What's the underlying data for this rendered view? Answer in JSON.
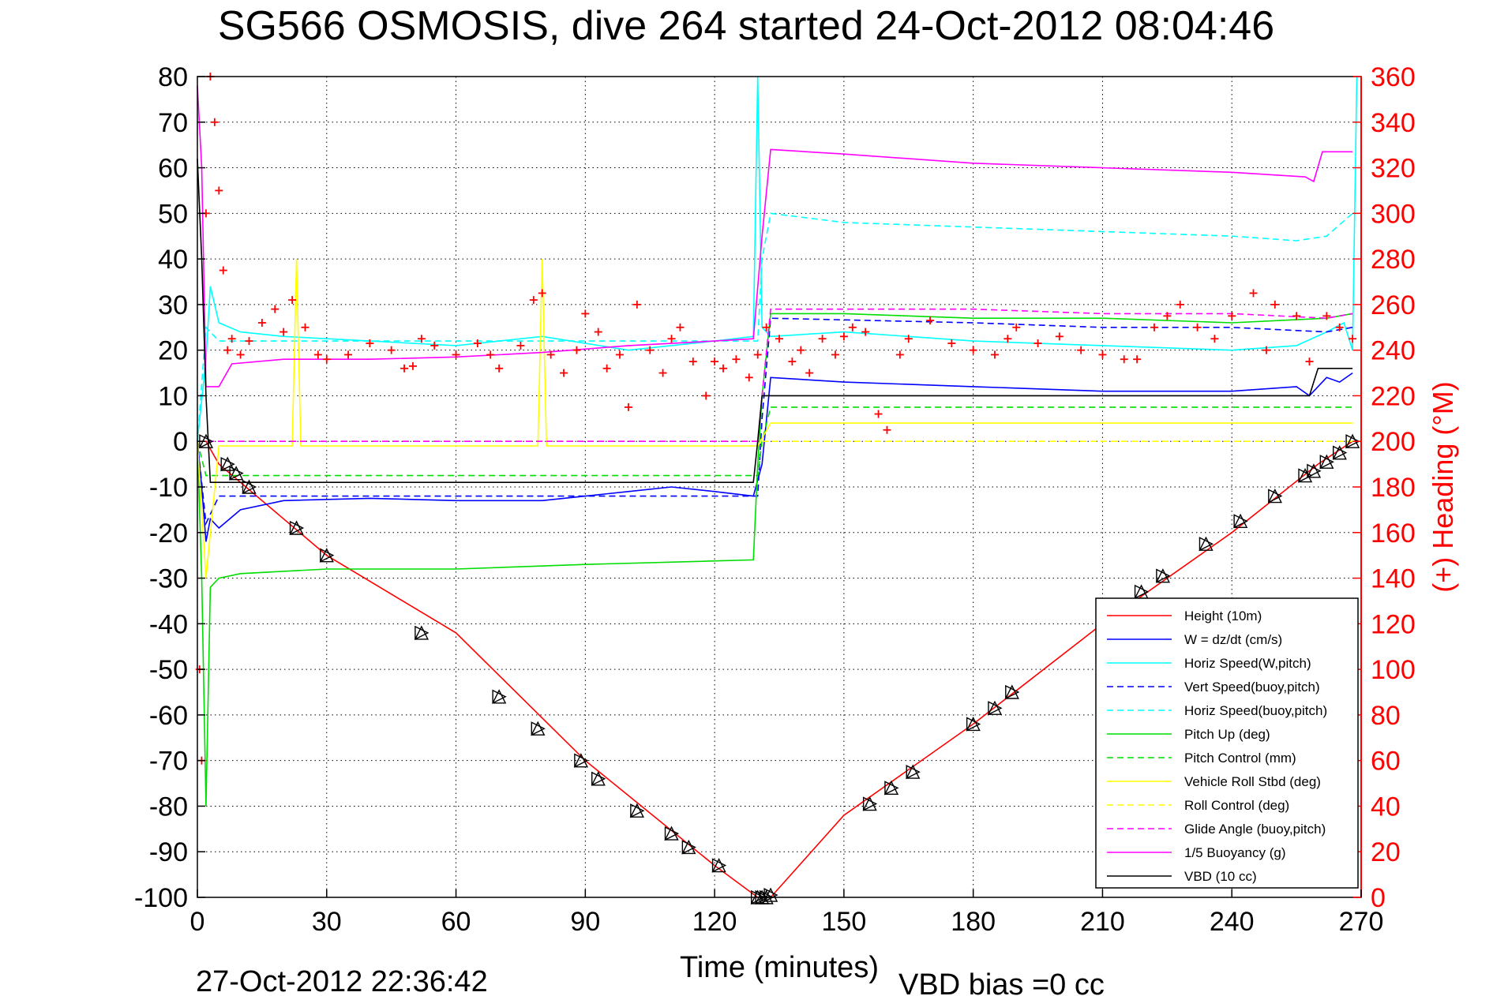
{
  "chart_data": {
    "type": "line",
    "title": "SG566 OSMOSIS, dive 264 started 24-Oct-2012 08:04:46",
    "xlabel": "Time (minutes)",
    "ylabel_left": "",
    "ylabel_right": "(+) Heading (°M)",
    "xlim": [
      0,
      270
    ],
    "ylim_left": [
      -100,
      80
    ],
    "ylim_right": [
      0,
      360
    ],
    "xticks": [
      0,
      30,
      60,
      90,
      120,
      150,
      180,
      210,
      240,
      270
    ],
    "yticks_left": [
      -100,
      -90,
      -80,
      -70,
      -60,
      -50,
      -40,
      -30,
      -20,
      -10,
      0,
      10,
      20,
      30,
      40,
      50,
      60,
      70,
      80
    ],
    "yticks_right": [
      0,
      20,
      40,
      60,
      80,
      100,
      120,
      140,
      160,
      180,
      200,
      220,
      240,
      260,
      280,
      300,
      320,
      340,
      360
    ],
    "grid": true,
    "legend_position": "bottom-right",
    "footer_left": "27-Oct-2012 22:36:42",
    "footer_right": "VBD bias =0 cc",
    "series": [
      {
        "name": "Height (10m)",
        "color": "#ff0000",
        "style": "solid",
        "x": [
          0,
          2,
          5,
          10,
          30,
          60,
          90,
          120,
          130,
          133,
          150,
          180,
          210,
          240,
          260,
          268
        ],
        "y": [
          0,
          0,
          -5,
          -9,
          -25,
          -42,
          -70,
          -93,
          -100,
          -100,
          -82,
          -62,
          -40,
          -20,
          -5,
          0
        ]
      },
      {
        "name": "W = dz/dt (cm/s)",
        "color": "#0000ff",
        "style": "solid",
        "x": [
          0,
          1,
          2,
          3,
          5,
          10,
          20,
          40,
          60,
          80,
          100,
          110,
          120,
          129,
          131,
          133,
          150,
          180,
          210,
          240,
          255,
          258,
          262,
          265,
          268
        ],
        "y": [
          0,
          -10,
          -22,
          -17,
          -19,
          -15,
          -13,
          -12.5,
          -13,
          -13,
          -11,
          -10,
          -11,
          -12,
          -5,
          14,
          13,
          12,
          11,
          11,
          12,
          10,
          14,
          13,
          15
        ]
      },
      {
        "name": "Horiz Speed(W,pitch)",
        "color": "#00ffff",
        "style": "solid",
        "x": [
          0,
          2,
          3,
          5,
          10,
          20,
          40,
          60,
          80,
          100,
          120,
          129,
          130,
          131,
          133,
          150,
          180,
          210,
          240,
          255,
          262,
          266,
          268,
          269
        ],
        "y": [
          0,
          18,
          34,
          26,
          24,
          23,
          22,
          21,
          23,
          20,
          22,
          23,
          80,
          25,
          23,
          24,
          22,
          21,
          20,
          21,
          24,
          26,
          20,
          80
        ]
      },
      {
        "name": "Vert Speed(buoy,pitch)",
        "color": "#0000ff",
        "style": "dashed",
        "x": [
          0,
          2,
          5,
          130,
          131,
          133,
          180,
          210,
          240,
          262,
          268
        ],
        "y": [
          0,
          -18,
          -12,
          -12,
          5,
          27,
          26,
          25,
          25,
          24,
          25
        ]
      },
      {
        "name": "Horiz Speed(buoy,pitch)",
        "color": "#00ffff",
        "style": "dashed",
        "x": [
          0,
          2,
          5,
          130,
          131,
          133,
          150,
          180,
          210,
          240,
          255,
          262,
          268
        ],
        "y": [
          0,
          25,
          22,
          22,
          40,
          50,
          48,
          47,
          46,
          45,
          44,
          45,
          50
        ]
      },
      {
        "name": "Pitch Up (deg)",
        "color": "#00dd00",
        "style": "solid",
        "x": [
          0,
          1,
          2,
          3,
          5,
          10,
          30,
          60,
          90,
          129,
          130,
          131,
          133,
          150,
          180,
          210,
          240,
          262,
          268
        ],
        "y": [
          0,
          -30,
          -80,
          -32,
          -30,
          -29,
          -28,
          -28,
          -27,
          -26,
          -5,
          10,
          28,
          28,
          27,
          27,
          26,
          27,
          28
        ]
      },
      {
        "name": "Pitch Control (mm)",
        "color": "#00dd00",
        "style": "dashed",
        "x": [
          0,
          2,
          130,
          131,
          133,
          268
        ],
        "y": [
          0,
          -7.5,
          -7.5,
          0,
          7.5,
          7.5
        ]
      },
      {
        "name": "Vehicle Roll Stbd (deg)",
        "color": "#ffff00",
        "style": "solid",
        "x": [
          0,
          2,
          5,
          22,
          23,
          24,
          30,
          60,
          79,
          80,
          81,
          100,
          130,
          133,
          160,
          200,
          240,
          268
        ],
        "y": [
          0,
          -30,
          -1,
          -1,
          40,
          -1,
          -1,
          -1,
          -1,
          40,
          -1,
          -1,
          -1,
          4,
          4,
          4,
          4,
          4
        ]
      },
      {
        "name": "Roll Control (deg)",
        "color": "#ffff00",
        "style": "dashed",
        "x": [
          0,
          2,
          130,
          131,
          133,
          268
        ],
        "y": [
          0,
          0,
          0,
          0,
          0,
          0
        ]
      },
      {
        "name": "Glide Angle (buoy,pitch)",
        "color": "#ff00ff",
        "style": "dashed",
        "x": [
          0,
          2,
          130,
          131,
          133,
          180,
          210,
          240,
          262,
          268
        ],
        "y": [
          0,
          0,
          0,
          10,
          29,
          29,
          28,
          28,
          27,
          28
        ]
      },
      {
        "name": "1/5 Buoyancy (g)",
        "color": "#ff00ff",
        "style": "solid",
        "x": [
          0,
          1,
          2,
          5,
          8,
          20,
          40,
          60,
          80,
          100,
          120,
          129,
          131,
          133,
          150,
          180,
          210,
          240,
          257,
          259,
          261,
          268
        ],
        "y": [
          78,
          60,
          12,
          12,
          17,
          18,
          18,
          18.5,
          19.5,
          21,
          22,
          22.5,
          45,
          64,
          63,
          61,
          60,
          59,
          58,
          57,
          63.5,
          63.5
        ]
      },
      {
        "name": "VBD (10 cc)",
        "color": "#000000",
        "style": "solid",
        "x": [
          0,
          1,
          2,
          3,
          129,
          130,
          131,
          132,
          258,
          259,
          260,
          268
        ],
        "y": [
          62,
          40,
          10,
          -9,
          -9,
          0,
          10,
          10,
          10,
          13,
          16,
          16
        ]
      }
    ],
    "heading_markers": {
      "name": "Heading",
      "axis": "right",
      "color": "#ff0000",
      "marker": "+",
      "x": [
        0.5,
        1,
        2,
        3,
        4,
        5,
        6,
        7,
        8,
        10,
        12,
        15,
        18,
        20,
        22,
        25,
        28,
        30,
        35,
        40,
        45,
        48,
        50,
        52,
        55,
        60,
        65,
        68,
        70,
        75,
        78,
        80,
        82,
        85,
        88,
        90,
        93,
        95,
        98,
        100,
        102,
        105,
        108,
        110,
        112,
        115,
        118,
        120,
        122,
        125,
        128,
        130,
        132,
        135,
        138,
        140,
        142,
        145,
        148,
        150,
        152,
        155,
        158,
        160,
        163,
        165,
        170,
        175,
        180,
        185,
        188,
        190,
        195,
        200,
        205,
        210,
        215,
        218,
        222,
        225,
        228,
        232,
        236,
        240,
        245,
        248,
        250,
        255,
        258,
        262,
        265,
        268
      ],
      "y": [
        100,
        60,
        300,
        360,
        340,
        310,
        275,
        240,
        245,
        238,
        244,
        252,
        258,
        248,
        262,
        250,
        238,
        236,
        238,
        243,
        240,
        232,
        233,
        245,
        242,
        238,
        243,
        238,
        232,
        242,
        262,
        265,
        238,
        230,
        240,
        256,
        248,
        232,
        238,
        215,
        260,
        240,
        230,
        245,
        250,
        235,
        220,
        235,
        232,
        236,
        228,
        238,
        250,
        245,
        235,
        240,
        230,
        245,
        238,
        246,
        250,
        248,
        212,
        205,
        238,
        245,
        253,
        243,
        240,
        238,
        245,
        250,
        243,
        246,
        240,
        238,
        236,
        236,
        250,
        255,
        260,
        250,
        245,
        255,
        265,
        240,
        260,
        255,
        235,
        255,
        250,
        245
      ]
    },
    "depth_markers": {
      "name": "Depth markers",
      "color": "#000000",
      "x": [
        2,
        7,
        9,
        12,
        23,
        30,
        52,
        70,
        79,
        89,
        93,
        102,
        110,
        114,
        121,
        130,
        131,
        132,
        133,
        156,
        161,
        166,
        180,
        185,
        189,
        219,
        224,
        234,
        242,
        250,
        257,
        259,
        262,
        265,
        268
      ],
      "y": [
        0,
        -5,
        -7,
        -10,
        -19,
        -25,
        -42,
        -56,
        -63,
        -70,
        -74,
        -81,
        -86,
        -89,
        -93,
        -100,
        -100,
        -100,
        -99.5,
        -79.5,
        -76,
        -72.5,
        -62,
        -58.5,
        -55,
        -33,
        -29.5,
        -22.5,
        -17.5,
        -12,
        -7.5,
        -6.5,
        -4.5,
        -2.5,
        0
      ]
    }
  }
}
